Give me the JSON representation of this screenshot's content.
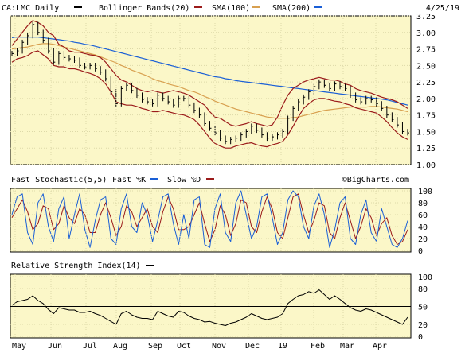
{
  "chart_data": {
    "type": "line",
    "date": "4/25/19",
    "watermark": "©BigCharts.com",
    "colors": {
      "price": "#000000",
      "bollinger": "#9b1b1b",
      "sma100": "#d8a050",
      "sma200": "#1a5fd6",
      "fast_k": "#1a5fd6",
      "slow_d": "#9b1b1b",
      "rsi": "#000000",
      "panel_bg": "#fbf7c8"
    },
    "x_labels": [
      "May",
      "Jun",
      "Jul",
      "Aug",
      "Sep",
      "Oct",
      "Nov",
      "Dec",
      "19",
      "Feb",
      "Mar",
      "Apr"
    ],
    "price_panel": {
      "legend": {
        "symbol": "CA:LMC Daily",
        "bollinger": "Bollinger Bands(20)",
        "sma100": "SMA(100)",
        "sma200": "SMA(200)"
      },
      "y_ticks": [
        "3.25",
        "3.00",
        "2.75",
        "2.50",
        "2.25",
        "2.00",
        "1.75",
        "1.50",
        "1.25",
        "1.00"
      ],
      "ylim": [
        1.0,
        3.25
      ],
      "close": [
        2.68,
        2.72,
        2.85,
        2.95,
        3.12,
        3.0,
        2.88,
        2.72,
        2.55,
        2.68,
        2.62,
        2.6,
        2.58,
        2.5,
        2.48,
        2.5,
        2.45,
        2.4,
        2.3,
        2.1,
        1.92,
        2.15,
        2.2,
        2.12,
        2.05,
        1.98,
        1.95,
        1.92,
        2.05,
        2.0,
        1.95,
        1.9,
        2.0,
        2.0,
        1.9,
        1.82,
        1.75,
        1.62,
        1.55,
        1.48,
        1.4,
        1.35,
        1.38,
        1.4,
        1.45,
        1.5,
        1.58,
        1.52,
        1.45,
        1.4,
        1.42,
        1.45,
        1.5,
        1.7,
        1.85,
        1.95,
        2.02,
        2.1,
        2.18,
        2.25,
        2.2,
        2.15,
        2.22,
        2.18,
        2.15,
        2.05,
        1.98,
        1.95,
        2.0,
        1.98,
        1.92,
        1.85,
        1.75,
        1.68,
        1.6,
        1.5,
        1.48
      ],
      "bb_upper": [
        2.8,
        2.9,
        3.0,
        3.1,
        3.18,
        3.15,
        3.1,
        3.0,
        2.95,
        2.82,
        2.78,
        2.72,
        2.7,
        2.7,
        2.68,
        2.66,
        2.65,
        2.62,
        2.55,
        2.45,
        2.35,
        2.28,
        2.25,
        2.2,
        2.15,
        2.12,
        2.1,
        2.12,
        2.1,
        2.08,
        2.1,
        2.12,
        2.1,
        2.08,
        2.05,
        2.0,
        1.95,
        1.9,
        1.8,
        1.72,
        1.7,
        1.65,
        1.6,
        1.58,
        1.6,
        1.62,
        1.65,
        1.62,
        1.6,
        1.58,
        1.6,
        1.72,
        1.9,
        2.05,
        2.15,
        2.2,
        2.25,
        2.28,
        2.3,
        2.32,
        2.3,
        2.28,
        2.28,
        2.26,
        2.22,
        2.2,
        2.15,
        2.12,
        2.1,
        2.08,
        2.05,
        2.02,
        2.0,
        1.98,
        1.95,
        1.9,
        1.85
      ],
      "bb_lower": [
        2.55,
        2.6,
        2.62,
        2.65,
        2.7,
        2.72,
        2.66,
        2.6,
        2.5,
        2.48,
        2.48,
        2.45,
        2.45,
        2.43,
        2.4,
        2.38,
        2.35,
        2.3,
        2.22,
        2.1,
        1.95,
        1.92,
        1.9,
        1.9,
        1.88,
        1.85,
        1.83,
        1.8,
        1.8,
        1.82,
        1.8,
        1.78,
        1.76,
        1.75,
        1.72,
        1.68,
        1.6,
        1.5,
        1.4,
        1.32,
        1.28,
        1.25,
        1.25,
        1.28,
        1.3,
        1.32,
        1.33,
        1.3,
        1.28,
        1.27,
        1.3,
        1.32,
        1.35,
        1.45,
        1.58,
        1.72,
        1.85,
        1.92,
        1.98,
        2.0,
        2.0,
        1.98,
        1.96,
        1.95,
        1.92,
        1.9,
        1.86,
        1.84,
        1.82,
        1.8,
        1.78,
        1.72,
        1.65,
        1.56,
        1.48,
        1.42,
        1.38
      ],
      "sma100": [
        2.75,
        2.76,
        2.77,
        2.78,
        2.8,
        2.82,
        2.83,
        2.83,
        2.82,
        2.8,
        2.78,
        2.76,
        2.74,
        2.72,
        2.7,
        2.68,
        2.66,
        2.63,
        2.6,
        2.57,
        2.54,
        2.5,
        2.47,
        2.43,
        2.4,
        2.37,
        2.34,
        2.3,
        2.27,
        2.25,
        2.22,
        2.2,
        2.18,
        2.15,
        2.12,
        2.1,
        2.07,
        2.03,
        2.0,
        1.96,
        1.93,
        1.9,
        1.87,
        1.84,
        1.82,
        1.8,
        1.78,
        1.76,
        1.74,
        1.72,
        1.71,
        1.7,
        1.7,
        1.7,
        1.71,
        1.72,
        1.74,
        1.76,
        1.78,
        1.8,
        1.82,
        1.83,
        1.84,
        1.85,
        1.86,
        1.87,
        1.87,
        1.87,
        1.87,
        1.88,
        1.88,
        1.87,
        1.86,
        1.85,
        1.84,
        1.82,
        1.8
      ],
      "sma200": [
        2.92,
        2.93,
        2.93,
        2.93,
        2.93,
        2.93,
        2.92,
        2.91,
        2.9,
        2.89,
        2.88,
        2.87,
        2.85,
        2.84,
        2.82,
        2.81,
        2.79,
        2.77,
        2.75,
        2.73,
        2.71,
        2.69,
        2.67,
        2.65,
        2.63,
        2.61,
        2.59,
        2.57,
        2.55,
        2.53,
        2.51,
        2.49,
        2.47,
        2.45,
        2.43,
        2.41,
        2.39,
        2.37,
        2.35,
        2.33,
        2.32,
        2.3,
        2.29,
        2.27,
        2.26,
        2.25,
        2.24,
        2.23,
        2.22,
        2.21,
        2.2,
        2.19,
        2.18,
        2.17,
        2.16,
        2.15,
        2.14,
        2.13,
        2.12,
        2.11,
        2.1,
        2.09,
        2.08,
        2.07,
        2.06,
        2.05,
        2.04,
        2.03,
        2.02,
        2.01,
        2.0,
        1.99,
        1.98,
        1.96,
        1.94,
        1.92,
        1.9
      ]
    },
    "stochastic_panel": {
      "legend": {
        "title": "Fast Stochastic(5,5)",
        "fast_k": "Fast %K",
        "slow_d": "Slow %D"
      },
      "y_ticks": [
        "100",
        "80",
        "60",
        "40",
        "20",
        "0"
      ],
      "ylim": [
        0,
        100
      ],
      "fast_k": [
        60,
        90,
        95,
        30,
        10,
        80,
        95,
        40,
        15,
        70,
        90,
        20,
        60,
        95,
        35,
        5,
        50,
        85,
        90,
        20,
        10,
        70,
        95,
        40,
        30,
        80,
        60,
        15,
        50,
        90,
        95,
        45,
        10,
        60,
        20,
        85,
        90,
        10,
        5,
        70,
        95,
        30,
        15,
        80,
        100,
        60,
        20,
        40,
        90,
        95,
        55,
        10,
        30,
        85,
        100,
        90,
        40,
        20,
        75,
        95,
        60,
        5,
        35,
        80,
        90,
        20,
        10,
        60,
        85,
        30,
        15,
        70,
        40,
        10,
        5,
        20,
        50
      ],
      "slow_d": [
        55,
        70,
        85,
        65,
        35,
        45,
        75,
        70,
        35,
        45,
        75,
        55,
        45,
        70,
        60,
        30,
        30,
        60,
        80,
        55,
        25,
        40,
        75,
        65,
        40,
        55,
        70,
        40,
        30,
        65,
        90,
        70,
        35,
        35,
        40,
        60,
        80,
        45,
        15,
        35,
        75,
        60,
        25,
        45,
        85,
        80,
        40,
        30,
        65,
        90,
        70,
        30,
        20,
        55,
        90,
        95,
        60,
        30,
        50,
        80,
        75,
        30,
        20,
        55,
        80,
        50,
        20,
        40,
        70,
        55,
        25,
        45,
        55,
        25,
        10,
        15,
        35
      ]
    },
    "rsi_panel": {
      "legend": {
        "title": "Relative Strength Index(14)"
      },
      "y_ticks": [
        "100",
        "80",
        "50",
        "20",
        "0"
      ],
      "ylim": [
        0,
        100
      ],
      "rsi": [
        52,
        58,
        60,
        62,
        68,
        60,
        55,
        45,
        38,
        48,
        46,
        44,
        44,
        40,
        40,
        42,
        38,
        35,
        30,
        25,
        20,
        38,
        42,
        36,
        32,
        30,
        30,
        28,
        42,
        38,
        34,
        32,
        42,
        40,
        34,
        30,
        28,
        24,
        25,
        22,
        20,
        18,
        22,
        24,
        28,
        32,
        38,
        34,
        30,
        28,
        30,
        32,
        38,
        55,
        62,
        68,
        70,
        75,
        72,
        78,
        70,
        62,
        68,
        62,
        55,
        48,
        44,
        42,
        46,
        44,
        40,
        36,
        32,
        28,
        24,
        20,
        32
      ]
    }
  }
}
